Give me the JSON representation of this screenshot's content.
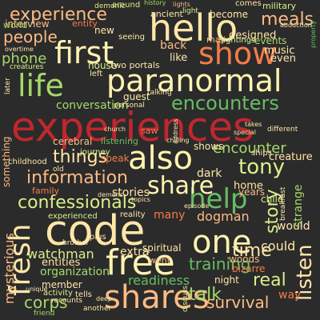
{
  "palette": {
    "background": "#2b2b2b",
    "red": "#c0272d",
    "orange": "#f47d4a",
    "peach": "#fdbb84",
    "cream": "#fee6a7",
    "yellow": "#fff3b0",
    "lime": "#d9ef8b",
    "lightgreen": "#a6d96a",
    "green": "#66bd63",
    "darkgreen": "#1a9850"
  },
  "words": [
    {
      "id": "experiences",
      "text": "experiences"
    },
    {
      "id": "paranormal",
      "text": "paranormal"
    },
    {
      "id": "hello",
      "text": "hello"
    },
    {
      "id": "code",
      "text": "code"
    },
    {
      "id": "one",
      "text": "one"
    },
    {
      "id": "free",
      "text": "free"
    },
    {
      "id": "shares",
      "text": "shares"
    },
    {
      "id": "fresh",
      "text": "fresh"
    },
    {
      "id": "also",
      "text": "also"
    },
    {
      "id": "help",
      "text": "help"
    },
    {
      "id": "show",
      "text": "show"
    },
    {
      "id": "first",
      "text": "first"
    },
    {
      "id": "life",
      "text": "life"
    },
    {
      "id": "share",
      "text": "share"
    },
    {
      "id": "encounters",
      "text": "encounters"
    },
    {
      "id": "confessionals",
      "text": "confessionals"
    },
    {
      "id": "information",
      "text": "information"
    },
    {
      "id": "encounter",
      "text": "encounter"
    },
    {
      "id": "experience",
      "text": "experience"
    },
    {
      "id": "people",
      "text": "people"
    },
    {
      "id": "meals",
      "text": "meals"
    },
    {
      "id": "phone",
      "text": "phone"
    },
    {
      "id": "tony",
      "text": "tony"
    },
    {
      "id": "story",
      "text": "story"
    },
    {
      "id": "listen",
      "text": "listen"
    },
    {
      "id": "training",
      "text": "training"
    },
    {
      "id": "survival",
      "text": "survival"
    },
    {
      "id": "talk",
      "text": "talk"
    },
    {
      "id": "real",
      "text": "real"
    },
    {
      "id": "time",
      "text": "time"
    },
    {
      "id": "readiness",
      "text": "readiness"
    },
    {
      "id": "corps",
      "text": "corps"
    },
    {
      "id": "mysterious",
      "text": "mysterious"
    },
    {
      "id": "things",
      "text": "things"
    },
    {
      "id": "stories",
      "text": "stories"
    },
    {
      "id": "watchman",
      "text": "watchman"
    },
    {
      "id": "entities",
      "text": "entities"
    },
    {
      "id": "organization",
      "text": "organization"
    },
    {
      "id": "conversation",
      "text": "conversation"
    },
    {
      "id": "interview",
      "text": "interview"
    },
    {
      "id": "dogman",
      "text": "dogman"
    },
    {
      "id": "designed",
      "text": "designed"
    },
    {
      "id": "cerebral",
      "text": "cerebral"
    },
    {
      "id": "listening",
      "text": "listening"
    },
    {
      "id": "house",
      "text": "house"
    },
    {
      "id": "guest",
      "text": "guest"
    },
    {
      "id": "world",
      "text": "world"
    },
    {
      "id": "entity",
      "text": "entity"
    },
    {
      "id": "new",
      "text": "new"
    },
    {
      "id": "back",
      "text": "back"
    },
    {
      "id": "like",
      "text": "like"
    },
    {
      "id": "two_portals",
      "text": "two portals"
    },
    {
      "id": "events",
      "text": "events"
    },
    {
      "id": "music",
      "text": "music"
    },
    {
      "id": "even",
      "text": "even"
    },
    {
      "id": "become",
      "text": "become"
    },
    {
      "id": "may",
      "text": "may"
    },
    {
      "id": "sightings",
      "text": "sightings"
    },
    {
      "id": "military",
      "text": "military"
    },
    {
      "id": "comes",
      "text": "comes"
    },
    {
      "id": "around",
      "text": "around"
    },
    {
      "id": "ancient",
      "text": "ancient"
    },
    {
      "id": "demonic",
      "text": "demonic"
    },
    {
      "id": "history",
      "text": "history"
    },
    {
      "id": "light",
      "text": "light"
    },
    {
      "id": "seeing",
      "text": "seeing"
    },
    {
      "id": "family",
      "text": "family"
    },
    {
      "id": "experienced",
      "text": "experienced"
    },
    {
      "id": "reality",
      "text": "reality"
    },
    {
      "id": "many",
      "text": "many"
    },
    {
      "id": "dark",
      "text": "dark"
    },
    {
      "id": "home",
      "text": "home"
    },
    {
      "id": "years",
      "text": "years"
    },
    {
      "id": "child",
      "text": "child"
    },
    {
      "id": "strange",
      "text": "strange"
    },
    {
      "id": "creature",
      "text": "creature"
    },
    {
      "id": "shows",
      "text": "shows"
    },
    {
      "id": "ships",
      "text": "ships"
    },
    {
      "id": "journey",
      "text": "journey"
    },
    {
      "id": "speak",
      "text": "speak"
    },
    {
      "id": "something",
      "text": "something"
    },
    {
      "id": "childhood",
      "text": "childhood"
    },
    {
      "id": "spiritual",
      "text": "spiritual"
    },
    {
      "id": "extra",
      "text": "extra"
    },
    {
      "id": "went",
      "text": "went"
    },
    {
      "id": "woods",
      "text": "woods"
    },
    {
      "id": "bizarre",
      "text": "bizarre"
    },
    {
      "id": "could",
      "text": "could"
    },
    {
      "id": "would",
      "text": "would"
    },
    {
      "id": "night",
      "text": "night"
    },
    {
      "id": "way",
      "text": "way"
    },
    {
      "id": "member",
      "text": "member"
    },
    {
      "id": "activity",
      "text": "activity"
    },
    {
      "id": "friend",
      "text": "friend"
    },
    {
      "id": "tells",
      "text": "tells"
    },
    {
      "id": "discuss",
      "text": "discuss"
    },
    {
      "id": "breakfast",
      "text": "breakfast"
    },
    {
      "id": "overtime",
      "text": "overtime"
    },
    {
      "id": "creatures",
      "text": "creatures"
    },
    {
      "id": "left",
      "text": "left"
    },
    {
      "id": "personal",
      "text": "personal"
    },
    {
      "id": "church",
      "text": "church"
    },
    {
      "id": "saw",
      "text": "saw"
    },
    {
      "id": "different",
      "text": "different"
    },
    {
      "id": "talking",
      "text": "talking"
    },
    {
      "id": "chilling",
      "text": "chilling"
    },
    {
      "id": "old",
      "text": "old"
    },
    {
      "id": "brother",
      "text": "brother"
    },
    {
      "id": "another",
      "text": "another"
    },
    {
      "id": "recounts",
      "text": "recounts"
    },
    {
      "id": "plus",
      "text": "plus"
    },
    {
      "id": "unique",
      "text": "unique"
    },
    {
      "id": "later",
      "text": "later"
    },
    {
      "id": "lights",
      "text": "lights"
    },
    {
      "id": "deep",
      "text": "deep"
    },
    {
      "id": "abduction",
      "text": "abduction"
    },
    {
      "id": "property",
      "text": "property"
    },
    {
      "id": "address",
      "text": "address"
    },
    {
      "id": "special",
      "text": "special"
    },
    {
      "id": "takes",
      "text": "takes"
    },
    {
      "id": "demons",
      "text": "demons"
    },
    {
      "id": "topics",
      "text": "topics"
    },
    {
      "id": "episode",
      "text": "episode"
    }
  ]
}
